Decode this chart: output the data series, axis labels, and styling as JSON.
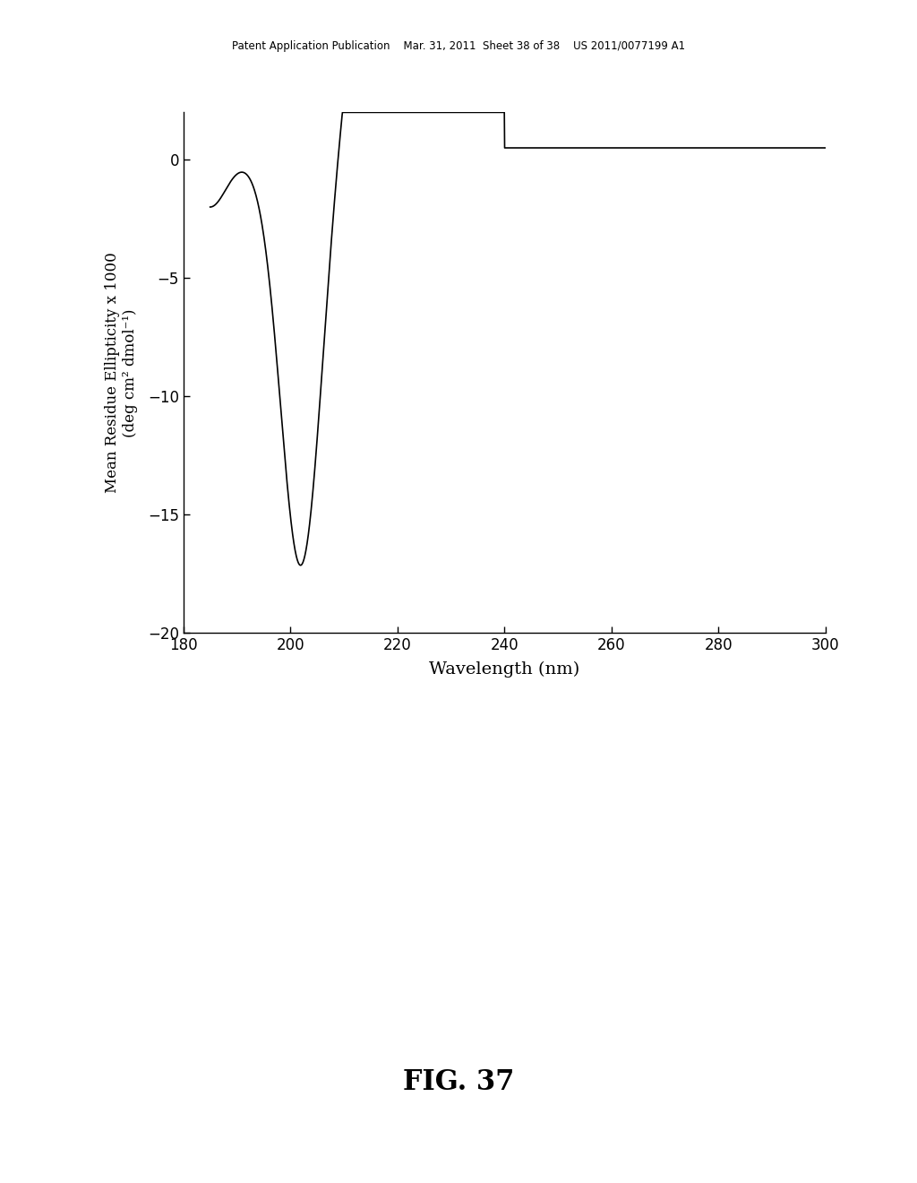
{
  "title_header": "Patent Application Publication    Mar. 31, 2011  Sheet 38 of 38    US 2011/0077199 A1",
  "fig_label": "FIG. 37",
  "xlabel": "Wavelength (nm)",
  "ylabel_line1": "Mean Residue Ellipticity x 1000",
  "ylabel_line2": "(deg cm² dmol⁻¹)",
  "xlim": [
    180,
    300
  ],
  "ylim": [
    -20,
    2
  ],
  "xticks": [
    180,
    200,
    220,
    240,
    260,
    280,
    300
  ],
  "yticks": [
    -20,
    -15,
    -10,
    -5,
    0
  ],
  "background_color": "#ffffff",
  "line_color": "#000000",
  "line_width": 1.2
}
